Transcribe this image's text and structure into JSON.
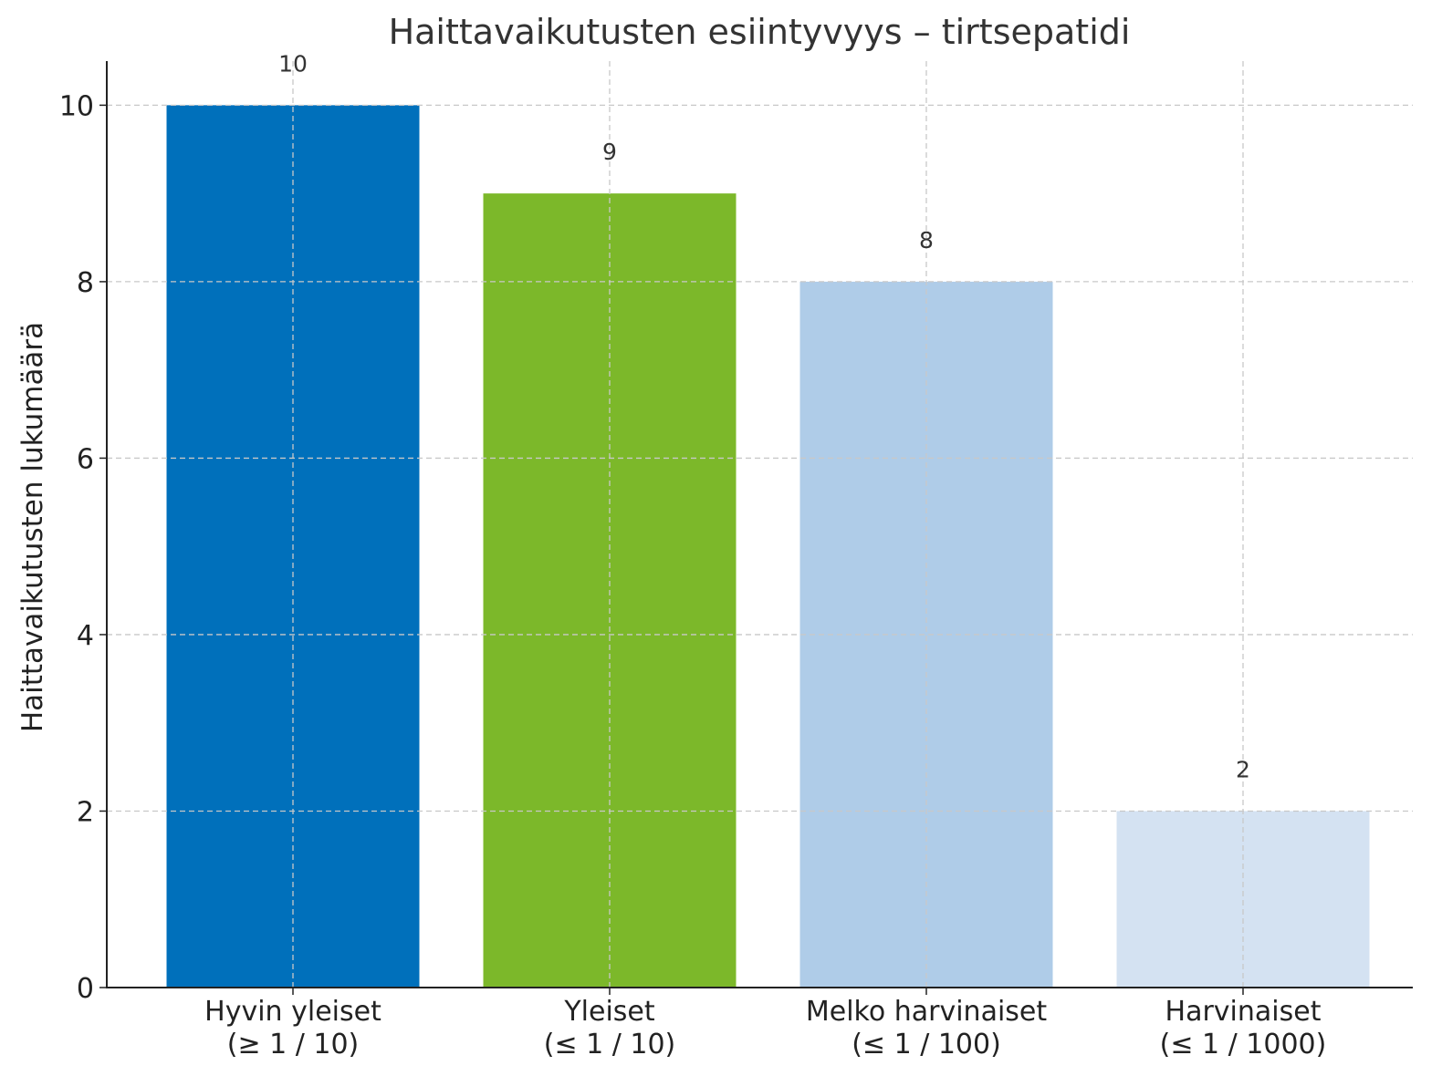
{
  "chart_data": {
    "type": "bar",
    "title": "Haittavaikutusten esiintyvyys – tirtsepatidi",
    "xlabel": "",
    "ylabel": "Haittavaikutusten lukumäärä",
    "ylim": [
      0,
      10.5
    ],
    "yticks": [
      0,
      2,
      4,
      6,
      8,
      10
    ],
    "grid": true,
    "categories": [
      [
        "Hyvin yleiset",
        "(≥ 1 / 10)"
      ],
      [
        "Yleiset",
        "(≤ 1 / 10)"
      ],
      [
        "Melko harvinaiset",
        "(≤ 1 / 100)"
      ],
      [
        "Harvinaiset",
        "(≤ 1 / 1000)"
      ]
    ],
    "values": [
      10,
      9,
      8,
      2
    ],
    "data_labels": [
      "10",
      "9",
      "8",
      "2"
    ],
    "colors": [
      "#0070bb",
      "#7cb82a",
      "#afcce8",
      "#d4e2f2"
    ]
  }
}
